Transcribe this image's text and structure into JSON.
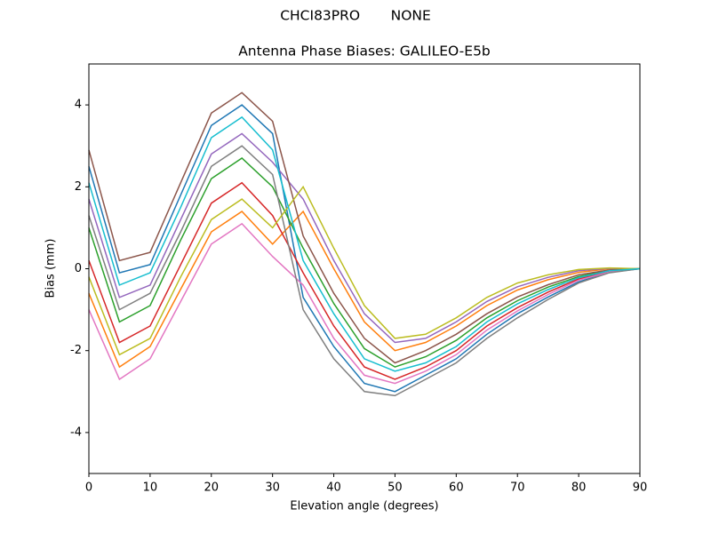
{
  "chart_data": {
    "type": "line",
    "suptitle": "CHCI83PRO       NONE",
    "title": "Antenna Phase Biases: GALILEO-E5b",
    "x_label": "Elevation angle (degrees)",
    "y_label": "Bias (mm)",
    "x": [
      0,
      5,
      10,
      15,
      20,
      25,
      30,
      35,
      40,
      45,
      50,
      55,
      60,
      65,
      70,
      75,
      80,
      85,
      90
    ],
    "xlim": [
      0,
      90
    ],
    "xticks": [
      0,
      10,
      20,
      30,
      40,
      50,
      60,
      70,
      80,
      90
    ],
    "ylim": [
      -5,
      5
    ],
    "yticks": [
      -4,
      -2,
      0,
      2,
      4
    ],
    "series": [
      {
        "color": "#1f77b4",
        "values": [
          2.5,
          -0.1,
          0.1,
          1.8,
          3.5,
          4.0,
          3.3,
          -0.7,
          -1.9,
          -2.8,
          -3.0,
          -2.6,
          -2.2,
          -1.6,
          -1.1,
          -0.69,
          -0.32,
          -0.09,
          0
        ]
      },
      {
        "color": "#ff7f0e",
        "values": [
          -0.6,
          -2.4,
          -1.9,
          -0.5,
          0.9,
          1.4,
          0.6,
          1.4,
          0.0,
          -1.3,
          -2.0,
          -1.8,
          -1.4,
          -0.9,
          -0.52,
          -0.27,
          -0.09,
          0.0,
          0
        ]
      },
      {
        "color": "#2ca02c",
        "values": [
          1.0,
          -1.3,
          -0.9,
          0.7,
          2.2,
          2.7,
          2.0,
          0.5,
          -0.85,
          -1.95,
          -2.4,
          -2.15,
          -1.75,
          -1.2,
          -0.78,
          -0.45,
          -0.19,
          -0.04,
          0
        ]
      },
      {
        "color": "#d62728",
        "values": [
          0.2,
          -1.8,
          -1.4,
          0.1,
          1.6,
          2.1,
          1.3,
          -0.1,
          -1.4,
          -2.4,
          -2.7,
          -2.4,
          -2.0,
          -1.4,
          -0.95,
          -0.57,
          -0.25,
          -0.06,
          0
        ]
      },
      {
        "color": "#9467bd",
        "values": [
          1.7,
          -0.7,
          -0.4,
          1.2,
          2.8,
          3.3,
          2.6,
          1.7,
          0.2,
          -1.1,
          -1.8,
          -1.7,
          -1.3,
          -0.8,
          -0.44,
          -0.21,
          -0.05,
          0.01,
          0
        ]
      },
      {
        "color": "#8c564b",
        "values": [
          2.9,
          0.2,
          0.4,
          2.1,
          3.8,
          4.3,
          3.6,
          0.8,
          -0.6,
          -1.7,
          -2.3,
          -2.0,
          -1.6,
          -1.1,
          -0.69,
          -0.39,
          -0.15,
          -0.03,
          0
        ]
      },
      {
        "color": "#e377c2",
        "values": [
          -1.0,
          -2.7,
          -2.2,
          -0.8,
          0.6,
          1.1,
          0.3,
          -0.4,
          -1.7,
          -2.6,
          -2.8,
          -2.5,
          -2.1,
          -1.5,
          -1.03,
          -0.63,
          -0.28,
          -0.08,
          0
        ]
      },
      {
        "color": "#7f7f7f",
        "values": [
          1.3,
          -1.0,
          -0.6,
          0.9,
          2.5,
          3.0,
          2.3,
          -1.0,
          -2.2,
          -3.0,
          -3.1,
          -2.7,
          -2.3,
          -1.7,
          -1.2,
          -0.75,
          -0.35,
          -0.1,
          0
        ]
      },
      {
        "color": "#bcbd22",
        "values": [
          -0.2,
          -2.1,
          -1.7,
          -0.2,
          1.2,
          1.7,
          1.0,
          2.0,
          0.5,
          -0.9,
          -1.7,
          -1.6,
          -1.2,
          -0.7,
          -0.35,
          -0.15,
          -0.02,
          0.02,
          0
        ]
      },
      {
        "color": "#17becf",
        "values": [
          2.1,
          -0.4,
          -0.1,
          1.5,
          3.2,
          3.7,
          2.9,
          0.2,
          -1.1,
          -2.2,
          -2.5,
          -2.3,
          -1.9,
          -1.3,
          -0.86,
          -0.51,
          -0.22,
          -0.05,
          0
        ]
      }
    ]
  }
}
